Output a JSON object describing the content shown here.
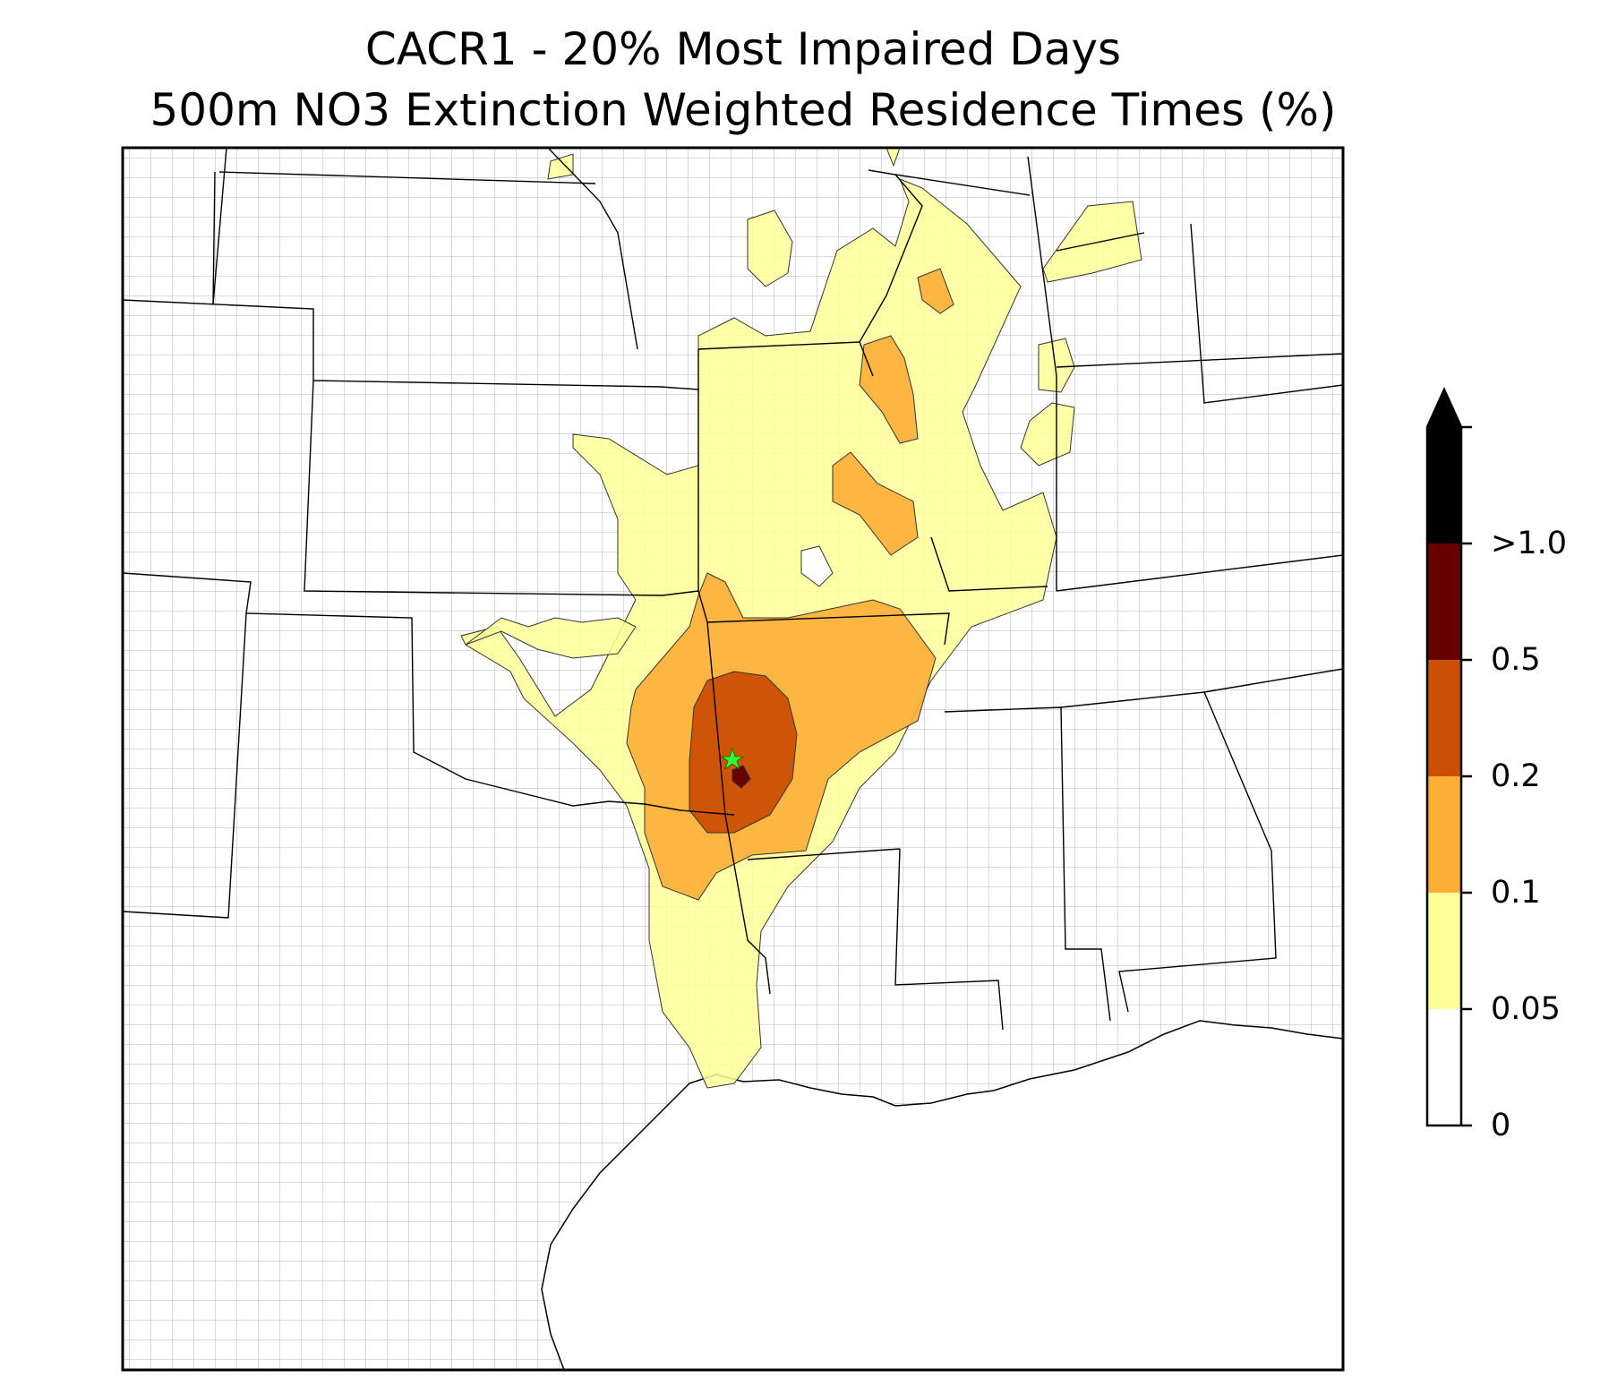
{
  "title": {
    "line1": "CACR1 - 20% Most Impaired Days",
    "line2": "500m NO3 Extinction Weighted Residence Times (%)"
  },
  "colorbar": {
    "labels": [
      "0",
      "0.05",
      "0.1",
      "0.2",
      "0.5",
      ">1.0"
    ],
    "bins": [
      {
        "from": "0",
        "to": "0.05",
        "color": "#ffffff"
      },
      {
        "from": "0.05",
        "to": "0.1",
        "color": "#ffff99"
      },
      {
        "from": "0.1",
        "to": "0.2",
        "color": "#fdae35"
      },
      {
        "from": "0.2",
        "to": "0.5",
        "color": "#cb4f05"
      },
      {
        "from": "0.5",
        "to": ">1.0",
        "color": "#670000"
      },
      {
        "from": ">1.0",
        "to": "extend",
        "color": "#000000"
      }
    ]
  },
  "colors": {
    "level_0_05": "#ffff99",
    "level_0_1": "#fdae35",
    "level_0_2": "#cb4f05",
    "level_0_5": "#670000",
    "level_1_0": "#000000",
    "county_lines": "#aaaaaa",
    "state_lines": "#000000",
    "receptor": "#33ff33"
  },
  "receptor": {
    "name": "CACR1",
    "icon": "star-icon"
  }
}
